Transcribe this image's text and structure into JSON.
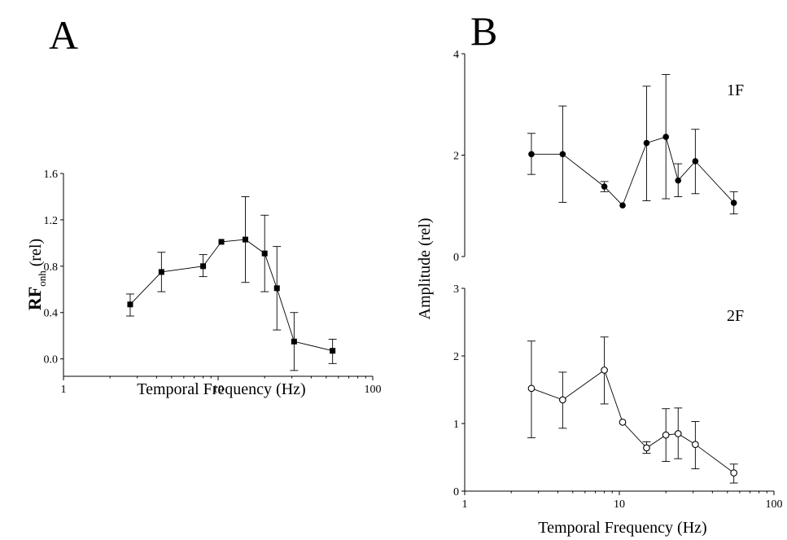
{
  "chart_data": [
    {
      "type": "scatter",
      "panel_label": "A",
      "xlabel": "Temporal Frequency (Hz)",
      "ylabel_main": "RF",
      "ylabel_sub": "onh",
      "ylabel_suffix": " (rel)",
      "x_scale": "log",
      "xlim": [
        1,
        100
      ],
      "ylim": [
        -0.15,
        1.6
      ],
      "x_ticks": [
        1,
        10,
        100
      ],
      "x_tick_labels": [
        "1",
        "10",
        "100"
      ],
      "y_ticks": [
        0.0,
        0.4,
        0.8,
        1.2,
        1.6
      ],
      "y_tick_labels": [
        "0.0",
        "0.4",
        "0.8",
        "1.2",
        "1.6"
      ],
      "marker": "filled-square",
      "series": [
        {
          "x": [
            2.7,
            4.3,
            8.0,
            10.5,
            15,
            20,
            24,
            31,
            55
          ],
          "y": [
            0.47,
            0.75,
            0.8,
            1.01,
            1.03,
            0.91,
            0.61,
            0.15,
            0.07
          ],
          "err_low": [
            0.37,
            0.58,
            0.71,
            1.01,
            0.66,
            0.58,
            0.25,
            -0.1,
            -0.04
          ],
          "err_high": [
            0.56,
            0.92,
            0.9,
            1.01,
            1.4,
            1.24,
            0.97,
            0.4,
            0.17
          ]
        }
      ]
    },
    {
      "type": "scatter",
      "panel_label": "B",
      "inset_label": "1F",
      "x_scale": "log",
      "xlim": [
        1,
        100
      ],
      "ylim": [
        0,
        4
      ],
      "x_ticks": [
        1,
        10,
        100
      ],
      "y_ticks": [
        0,
        2,
        4
      ],
      "y_tick_labels": [
        "0",
        "2",
        "4"
      ],
      "marker": "filled-circle",
      "series": [
        {
          "x": [
            2.7,
            4.3,
            8.0,
            10.5,
            15,
            20,
            24,
            31,
            55
          ],
          "y": [
            2.02,
            2.02,
            1.38,
            1.01,
            2.24,
            2.36,
            1.5,
            1.88,
            1.06
          ],
          "err_low": [
            1.62,
            1.07,
            1.28,
            1.01,
            1.1,
            1.14,
            1.18,
            1.24,
            0.84
          ],
          "err_high": [
            2.43,
            2.97,
            1.48,
            1.01,
            3.36,
            3.59,
            1.83,
            2.51,
            1.28
          ]
        }
      ]
    },
    {
      "type": "scatter",
      "inset_label": "2F",
      "xlabel": "Temporal Frequency (Hz)",
      "shared_ylabel": "Amplitude (rel)",
      "x_scale": "log",
      "xlim": [
        1,
        100
      ],
      "ylim": [
        0,
        3
      ],
      "x_ticks": [
        1,
        10,
        100
      ],
      "x_tick_labels": [
        "1",
        "10",
        "100"
      ],
      "y_ticks": [
        0,
        1,
        2,
        3
      ],
      "y_tick_labels": [
        "0",
        "1",
        "2",
        "3"
      ],
      "marker": "open-circle",
      "series": [
        {
          "x": [
            2.7,
            4.3,
            8.0,
            10.5,
            15,
            20,
            24,
            31,
            55
          ],
          "y": [
            1.52,
            1.35,
            1.79,
            1.02,
            0.64,
            0.83,
            0.85,
            0.69,
            0.27
          ],
          "err_low": [
            0.79,
            0.93,
            1.29,
            1.02,
            0.56,
            0.44,
            0.48,
            0.33,
            0.12
          ],
          "err_high": [
            2.22,
            1.76,
            2.28,
            1.02,
            0.73,
            1.22,
            1.23,
            1.03,
            0.4
          ]
        }
      ]
    }
  ]
}
